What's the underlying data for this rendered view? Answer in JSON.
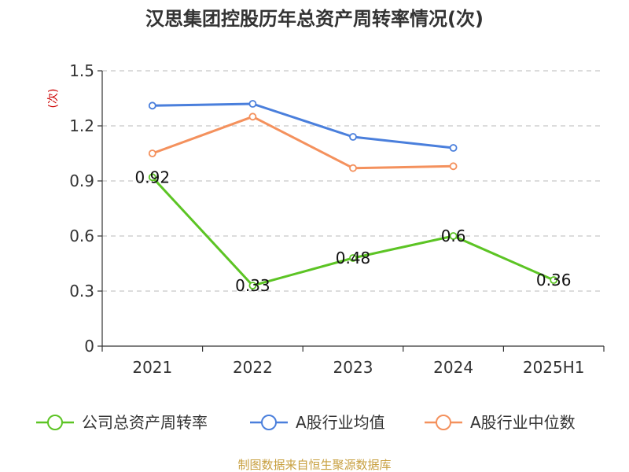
{
  "chart_data": {
    "type": "line",
    "title": "汉思集团控股历年总资产周转率情况(次)",
    "ylabel": "(次)",
    "xlabel": "",
    "categories": [
      "2021",
      "2022",
      "2023",
      "2024",
      "2025H1"
    ],
    "ylim": [
      0,
      1.5
    ],
    "yticks": [
      "0",
      "0.3",
      "0.6",
      "0.9",
      "1.2",
      "1.5"
    ],
    "grid": true,
    "legend_position": "bottom",
    "series": [
      {
        "name": "公司总资产周转率",
        "color": "#5cc424",
        "values": [
          0.92,
          0.33,
          0.48,
          0.6,
          0.36
        ],
        "labels": [
          "0.92",
          "0.33",
          "0.48",
          "0.6",
          "0.36"
        ]
      },
      {
        "name": "A股行业均值",
        "color": "#4a7fdc",
        "values": [
          1.31,
          1.32,
          1.14,
          1.08,
          null
        ]
      },
      {
        "name": "A股行业中位数",
        "color": "#f4915d",
        "values": [
          1.05,
          1.25,
          0.97,
          0.98,
          null
        ]
      }
    ],
    "source": "制图数据来自恒生聚源数据库"
  }
}
